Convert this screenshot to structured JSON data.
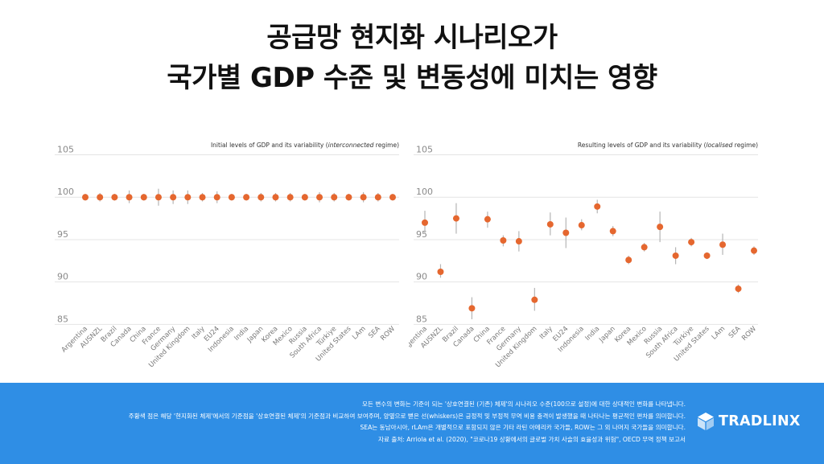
{
  "title": {
    "line1": "공급망 현지화 시나리오가",
    "line2": "국가별 GDP 수준 및 변동성에 미치는 영향"
  },
  "colors": {
    "point": "#e5672f",
    "whisker": "#b5b5b5",
    "grid": "#e4e4e4",
    "axis_text": "#8a8a8a",
    "footer_bg": "#2f8ee5"
  },
  "chart_data": [
    {
      "type": "scatter",
      "title_prefix": "Initial levels of GDP and its variability (",
      "title_em": "interconnected",
      "title_suffix": " regime)",
      "categories": [
        "Argentina",
        "AUSNZL",
        "Brazil",
        "Canada",
        "China",
        "France",
        "Germany",
        "United Kingdom",
        "Italy",
        "EU24",
        "Indonesia",
        "India",
        "Japan",
        "Korea",
        "Mexico",
        "Russia",
        "South Africa",
        "Türkiye",
        "United States",
        "LAm",
        "SEA",
        "ROW"
      ],
      "values": [
        100,
        100,
        100,
        100,
        100,
        100,
        100,
        100,
        100,
        100,
        100,
        100,
        100,
        100,
        100,
        100,
        100,
        100,
        100,
        100,
        100,
        100
      ],
      "whisker_low": [
        99.6,
        99.5,
        99.6,
        99.3,
        99.6,
        99.0,
        99.2,
        99.2,
        99.5,
        99.3,
        99.6,
        99.6,
        99.5,
        99.5,
        99.5,
        99.6,
        99.4,
        99.5,
        99.6,
        99.4,
        99.5,
        99.6
      ],
      "whisker_high": [
        100.4,
        100.5,
        100.4,
        100.8,
        100.4,
        101.0,
        100.8,
        100.8,
        100.5,
        100.7,
        100.4,
        100.4,
        100.5,
        100.5,
        100.5,
        100.4,
        100.6,
        100.5,
        100.4,
        100.6,
        100.5,
        100.4
      ],
      "yticks": [
        105,
        100,
        95,
        90,
        85
      ],
      "ylim": [
        84,
        106
      ],
      "grid": true
    },
    {
      "type": "scatter",
      "title_prefix": "Resulting levels of GDP and its variability (",
      "title_em": "localised",
      "title_suffix": " regime)",
      "categories": [
        "Argentina",
        "AUSNZL",
        "Brazil",
        "Canada",
        "China",
        "France",
        "Germany",
        "United Kingdom",
        "Italy",
        "EU24",
        "Indonesia",
        "India",
        "Japan",
        "Korea",
        "Mexico",
        "Russia",
        "South Africa",
        "Türkiye",
        "United States",
        "LAm",
        "SEA",
        "ROW"
      ],
      "values": [
        97.0,
        91.2,
        97.5,
        86.9,
        97.4,
        94.9,
        94.8,
        87.9,
        96.8,
        95.8,
        96.7,
        98.9,
        96.0,
        92.6,
        94.1,
        96.5,
        93.1,
        94.7,
        93.1,
        94.4,
        89.2,
        93.7
      ],
      "whisker_low": [
        95.7,
        90.5,
        95.7,
        85.6,
        96.4,
        94.2,
        93.6,
        86.6,
        95.5,
        94.0,
        96.1,
        98.1,
        95.4,
        92.1,
        93.6,
        94.7,
        92.1,
        94.2,
        92.7,
        93.2,
        88.7,
        93.2
      ],
      "whisker_high": [
        98.4,
        92.1,
        99.3,
        88.2,
        98.3,
        95.5,
        96.0,
        89.3,
        98.2,
        97.6,
        97.4,
        99.7,
        96.6,
        93.1,
        94.6,
        98.3,
        94.1,
        95.2,
        93.5,
        95.7,
        89.7,
        94.2
      ],
      "yticks": [
        105,
        100,
        95,
        90,
        85
      ],
      "ylim": [
        84,
        106
      ],
      "grid": true
    }
  ],
  "footer": {
    "notes": [
      "모든 변수의 변화는 기준이 되는 '상호연결된 (기존) 체제'의 시나리오 수준(100으로 설정)에 대한 상대적인 변화를 나타냅니다.",
      "주황색 점은 해당 '현지화된 체제'에서의 기준점을 '상호연결된 체제'의 기준점과 비교하여 보여주며, 양옆으로 뻗은 선(whiskers)은 긍정적 및 부정적 무역 비용 충격이 발생했을 때 나타나는 평균적인 편차를 의미합니다.",
      "SEA는 동남아시아, rLAm은 개별적으로 포함되지 않은 기타 라틴 아메리카 국가들, ROW는 그 외 나머지 국가들을 의미합니다.",
      "자료 출처: Arriola et al. (2020), \"코로나19 상황에서의 글로벌 가치 사슬의 효율성과 위험\", OECD 무역 정책 보고서"
    ],
    "logo_text": "TRADLINX",
    "logo_icon": "tradlinx-cube-icon"
  }
}
